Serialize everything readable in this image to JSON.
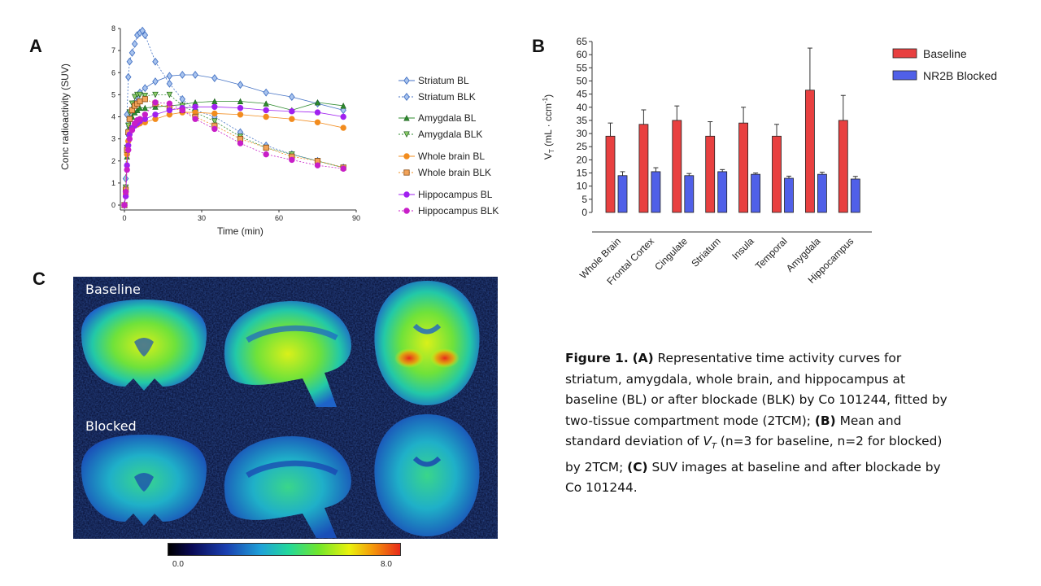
{
  "panel_labels": {
    "a": "A",
    "b": "B",
    "c": "C"
  },
  "chart_data": [
    {
      "type": "line",
      "xlabel": "Time (min)",
      "ylabel": "Conc radioactivity (SUV)",
      "xlim": [
        0,
        90
      ],
      "ylim": [
        0,
        8
      ],
      "xticks": [
        0,
        30,
        60,
        90
      ],
      "yticks": [
        0,
        1,
        2,
        3,
        4,
        5,
        6,
        7,
        8
      ],
      "legend_position": "right",
      "series": [
        {
          "name": "Striatum BL",
          "color": "#4472C4",
          "marker": "diamond",
          "dashed": false,
          "x": [
            0,
            0.5,
            1,
            1.5,
            2,
            3,
            4,
            5,
            6,
            8,
            12,
            17.5,
            22.5,
            27.5,
            35,
            45,
            55,
            65,
            75,
            85
          ],
          "y": [
            0,
            0.6,
            2.3,
            3.2,
            3.9,
            4.3,
            4.6,
            4.9,
            5.1,
            5.3,
            5.6,
            5.85,
            5.9,
            5.9,
            5.75,
            5.45,
            5.1,
            4.9,
            4.6,
            4.3
          ]
        },
        {
          "name": "Striatum BLK",
          "color": "#4472C4",
          "marker": "diamond",
          "dashed": true,
          "x": [
            0,
            0.5,
            1,
            1.5,
            2,
            3,
            4,
            5,
            6,
            7,
            8,
            12,
            17.5,
            22.5,
            27.5,
            35,
            45,
            55,
            65,
            75,
            85
          ],
          "y": [
            0,
            1.2,
            4.1,
            5.8,
            6.5,
            6.9,
            7.3,
            7.7,
            7.8,
            7.9,
            7.7,
            6.5,
            5.5,
            4.8,
            4.3,
            4.0,
            3.3,
            2.7,
            2.3,
            2.0,
            1.7
          ]
        },
        {
          "name": "Amygdala BL",
          "color": "#2E8B2E",
          "marker": "triangle-up",
          "dashed": false,
          "x": [
            0,
            0.5,
            1,
            1.5,
            2,
            3,
            4,
            5,
            6,
            8,
            12,
            17.5,
            22.5,
            27.5,
            35,
            45,
            55,
            65,
            75,
            85
          ],
          "y": [
            0,
            0.5,
            2.2,
            3.0,
            3.6,
            4.0,
            4.2,
            4.3,
            4.4,
            4.4,
            4.45,
            4.5,
            4.55,
            4.65,
            4.7,
            4.7,
            4.6,
            4.3,
            4.65,
            4.5
          ]
        },
        {
          "name": "Amygdala BLK",
          "color": "#2E8B2E",
          "marker": "triangle-down",
          "dashed": true,
          "x": [
            0,
            0.5,
            1,
            1.5,
            2,
            3,
            4,
            5,
            6,
            8,
            12,
            17.5,
            22.5,
            27.5,
            35,
            45,
            55,
            65,
            75,
            85
          ],
          "y": [
            0,
            0.8,
            2.6,
            3.6,
            4.2,
            4.6,
            4.9,
            5.0,
            5.0,
            4.95,
            5.0,
            5.0,
            4.5,
            4.2,
            3.8,
            3.1,
            2.6,
            2.3,
            2.0,
            1.7
          ]
        },
        {
          "name": "Whole brain BL",
          "color": "#F28C1E",
          "marker": "circle",
          "dashed": false,
          "x": [
            0,
            0.5,
            1,
            1.5,
            2,
            3,
            4,
            5,
            6,
            8,
            12,
            17.5,
            22.5,
            27.5,
            35,
            45,
            55,
            65,
            75,
            85
          ],
          "y": [
            0,
            0.5,
            2.3,
            2.9,
            3.3,
            3.5,
            3.6,
            3.65,
            3.7,
            3.75,
            3.9,
            4.1,
            4.2,
            4.2,
            4.15,
            4.1,
            4.0,
            3.9,
            3.75,
            3.5
          ]
        },
        {
          "name": "Whole brain BLK",
          "color": "#F28C1E",
          "marker": "square",
          "dashed": true,
          "x": [
            0,
            0.5,
            1,
            1.5,
            2,
            3,
            4,
            5,
            6,
            8,
            12,
            17.5,
            22.5,
            27.5,
            35,
            45,
            55,
            65,
            75,
            85
          ],
          "y": [
            0,
            0.7,
            2.5,
            3.3,
            3.9,
            4.3,
            4.5,
            4.6,
            4.7,
            4.8,
            4.6,
            4.4,
            4.3,
            4.0,
            3.6,
            3.0,
            2.6,
            2.2,
            2.0,
            1.7
          ]
        },
        {
          "name": "Hippocampus BL",
          "color": "#A020F0",
          "marker": "circle",
          "dashed": false,
          "x": [
            0,
            0.5,
            1,
            1.5,
            2,
            3,
            4,
            5,
            6,
            8,
            12,
            17.5,
            22.5,
            27.5,
            35,
            45,
            55,
            65,
            75,
            85
          ],
          "y": [
            0,
            0.4,
            1.8,
            2.7,
            3.2,
            3.5,
            3.6,
            3.7,
            3.8,
            3.9,
            4.1,
            4.3,
            4.4,
            4.45,
            4.45,
            4.4,
            4.3,
            4.25,
            4.2,
            4.0
          ]
        },
        {
          "name": "Hippocampus BLK",
          "color": "#C81EC8",
          "marker": "circle",
          "dashed": true,
          "x": [
            0,
            0.5,
            1,
            1.5,
            2,
            3,
            4,
            5,
            6,
            8,
            12,
            17.5,
            22.5,
            27.5,
            35,
            45,
            55,
            65,
            75,
            85
          ],
          "y": [
            0,
            0.6,
            1.6,
            2.5,
            3.0,
            3.4,
            3.7,
            3.85,
            3.9,
            4.1,
            4.65,
            4.6,
            4.3,
            3.9,
            3.45,
            2.8,
            2.3,
            2.05,
            1.8,
            1.65
          ]
        }
      ]
    },
    {
      "type": "bar",
      "ylabel": "V_T (mL · ccm⁻¹)",
      "ylabel_main": "V",
      "ylabel_sub": "T",
      "ylabel_rest": " (mL · ccm",
      "ylabel_sup": "-1",
      "ylabel_close": ")",
      "ylim": [
        0,
        65
      ],
      "yticks": [
        0,
        5,
        10,
        15,
        20,
        25,
        30,
        35,
        40,
        45,
        50,
        55,
        60,
        65
      ],
      "legend_position": "top-right",
      "categories": [
        "Whole Brain",
        "Frontal Cortex",
        "Cingulate",
        "Striatum",
        "Insula",
        "Temporal",
        "Amygdala",
        "Hippocampus"
      ],
      "series": [
        {
          "name": "Baseline",
          "color": "#E84040",
          "values": [
            29,
            33.5,
            35,
            29,
            34,
            29,
            46.5,
            35
          ],
          "errors": [
            5,
            5.5,
            5.5,
            5.5,
            6,
            4.5,
            16,
            9.5
          ]
        },
        {
          "name": "NR2B Blocked",
          "color": "#5060E8",
          "values": [
            14,
            15.5,
            14,
            15.5,
            14.5,
            13,
            14.5,
            12.7
          ],
          "errors": [
            1.5,
            1.5,
            0.8,
            0.8,
            0.5,
            0.8,
            0.8,
            1
          ]
        }
      ]
    }
  ],
  "panel_c": {
    "row_labels": {
      "top": "Baseline",
      "bottom": "Blocked"
    },
    "colorbar": {
      "min": "0.0",
      "max": "8.0"
    }
  },
  "caption": {
    "fig_label": "Figure 1.",
    "a_label": "(A)",
    "a_text": " Representative  time activity curves for striatum, amygdala, whole brain, and hippocampus at baseline (BL) or after blockade (BLK) by Co 101244, fitted by two-tissue  compartment mode (2TCM); ",
    "b_label": "(B)",
    "b_text_1": " Mean and standard deviation of ",
    "b_var": "V",
    "b_var_sub": "T",
    "b_text_2": " (n=3 for baseline, n=2 for blocked) by 2TCM; ",
    "c_label": "(C)",
    "c_text": " SUV images at baseline and after blockade by Co 101244."
  }
}
